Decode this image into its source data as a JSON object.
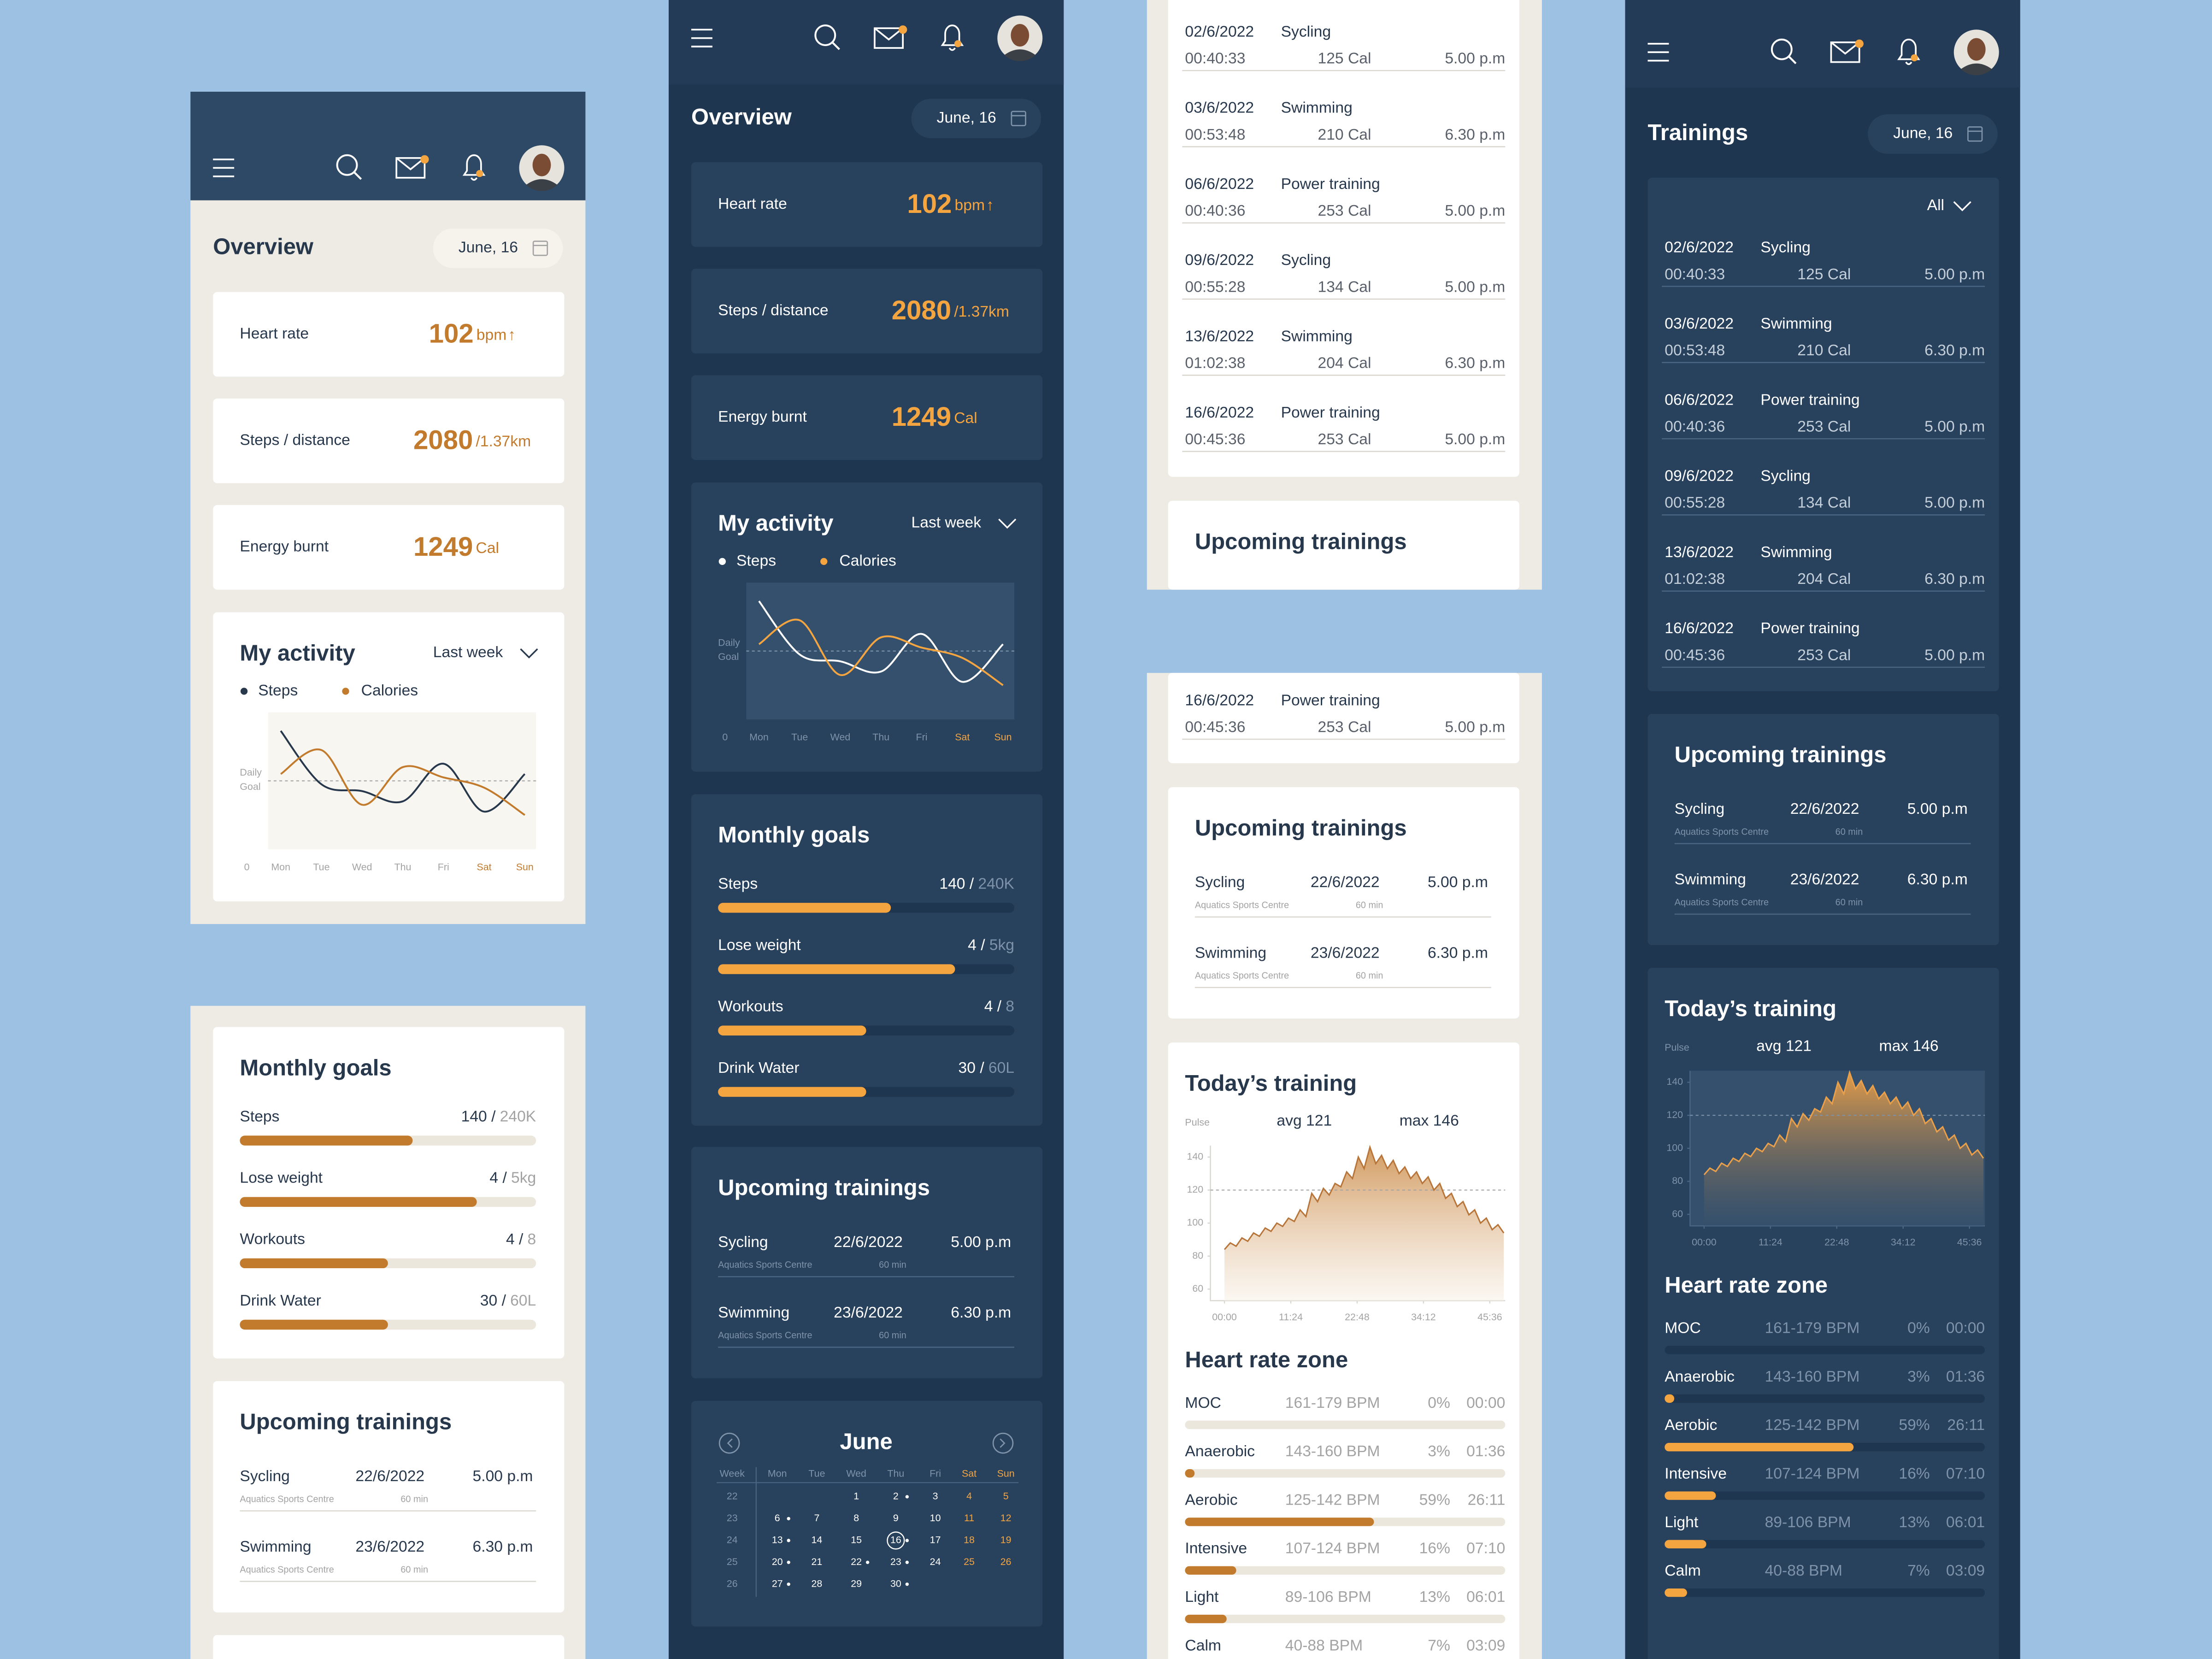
{
  "header": {
    "date": "June, 16"
  },
  "overview": {
    "title": "Overview",
    "metrics": [
      {
        "label": "Heart rate",
        "value": 102,
        "unit": "bpm",
        "trend": "↑"
      },
      {
        "label": "Steps / distance",
        "value": 2080,
        "unit": "/1.37km"
      },
      {
        "label": "Energy burnt",
        "value": 1249,
        "unit": "Cal"
      }
    ]
  },
  "activity": {
    "title": "My activity",
    "period": "Last week",
    "goal_label": [
      "Daily",
      "Goal"
    ],
    "chart": {
      "type": "line",
      "categories": [
        "Mon",
        "Tue",
        "Wed",
        "Thu",
        "Fri",
        "Sat",
        "Sun"
      ],
      "ylim": [
        0,
        2
      ],
      "yticks": [
        0
      ],
      "reference": 1,
      "series": [
        {
          "name": "Steps",
          "values": [
            1.73,
            0.95,
            0.85,
            0.7,
            1.25,
            0.55,
            1.1
          ]
        },
        {
          "name": "Calories",
          "values": [
            1.1,
            1.45,
            0.65,
            1.2,
            1.05,
            0.9,
            0.5
          ]
        }
      ]
    }
  },
  "monthly_goals": {
    "title": "Monthly goals",
    "items": [
      {
        "label": "Steps",
        "current": {
          "value": 140,
          "label": "140 /"
        },
        "goal": {
          "value": 240,
          "label": "240K"
        }
      },
      {
        "label": "Lose weight",
        "current": {
          "value": 4,
          "label": "4 /"
        },
        "goal": {
          "value": 5,
          "label": "5kg"
        }
      },
      {
        "label": "Workouts",
        "current": {
          "value": 4,
          "label": "4 /"
        },
        "goal": 8
      },
      {
        "label": "Drink Water",
        "current": {
          "value": 30,
          "label": "30 /"
        },
        "goal": {
          "value": 60,
          "label": "60L"
        }
      }
    ]
  },
  "upcoming": {
    "title": "Upcoming trainings",
    "items": [
      {
        "name": "Sycling",
        "date": "22/6/2022",
        "time": "5.00 p.m",
        "venue": "Aquatics Sports Centre",
        "duration": "60 min"
      },
      {
        "name": "Swimming",
        "date": "23/6/2022",
        "time": "6.30 p.m",
        "venue": "Aquatics Sports Centre",
        "duration": "60 min"
      }
    ]
  },
  "trainings": {
    "title": "Trainings",
    "filter": "All",
    "items": [
      {
        "date": "02/6/2022",
        "name": "Sycling",
        "duration": "00:40:33",
        "calories": "125 Cal",
        "time": "5.00 p.m"
      },
      {
        "date": "03/6/2022",
        "name": "Swimming",
        "duration": "00:53:48",
        "calories": "210 Cal",
        "time": "6.30 p.m"
      },
      {
        "date": "06/6/2022",
        "name": "Power training",
        "duration": "00:40:36",
        "calories": "253 Cal",
        "time": "5.00 p.m"
      },
      {
        "date": "09/6/2022",
        "name": "Sycling",
        "duration": "00:55:28",
        "calories": "134 Cal",
        "time": "5.00 p.m"
      },
      {
        "date": "13/6/2022",
        "name": "Swimming",
        "duration": "01:02:38",
        "calories": "204 Cal",
        "time": "6.30 p.m"
      },
      {
        "date": "16/6/2022",
        "name": "Power training",
        "duration": "00:45:36",
        "calories": "253 Cal",
        "time": "5.00 p.m"
      }
    ]
  },
  "today": {
    "title": "Today’s training",
    "pulse_label": "Pulse",
    "avg": "avg 121",
    "max": "max 146",
    "chart": {
      "type": "area",
      "x": [
        0,
        60,
        120,
        180,
        240,
        300,
        360,
        420,
        480,
        540,
        600,
        660,
        720,
        780,
        840,
        900,
        960,
        1020,
        1080,
        1140,
        1200,
        1260,
        1320,
        1380,
        1440,
        1500,
        1560,
        1620,
        1680,
        1740,
        1800,
        1860,
        1920,
        1980,
        2040,
        2100,
        2160,
        2220,
        2280,
        2340,
        2400,
        2460,
        2520,
        2580,
        2640,
        2700,
        2760,
        2820,
        2880
      ],
      "values": [
        84,
        88,
        86,
        91,
        89,
        94,
        92,
        97,
        95,
        100,
        98,
        103,
        101,
        108,
        104,
        118,
        113,
        121,
        117,
        124,
        122,
        131,
        127,
        140,
        133,
        146,
        136,
        141,
        133,
        138,
        130,
        134,
        127,
        131,
        124,
        128,
        120,
        124,
        115,
        118,
        110,
        113,
        105,
        108,
        100,
        103,
        96,
        99,
        94
      ],
      "xlim": [
        -145,
        2895
      ],
      "ylim": [
        53,
        147
      ],
      "yticks": [
        60,
        80,
        100,
        120,
        140
      ],
      "xticks": [
        {
          "value": 0,
          "label": "00:00"
        },
        {
          "value": 684,
          "label": "11:24"
        },
        {
          "value": 1368,
          "label": "22:48"
        },
        {
          "value": 2052,
          "label": "34:12"
        },
        {
          "value": 2736,
          "label": "45:36"
        }
      ],
      "reference": 120
    }
  },
  "heart_zone": {
    "title": "Heart rate zone",
    "zones": [
      {
        "name": "MOC",
        "range": "161-179 BPM",
        "share": {
          "value": 0,
          "label": "0%"
        },
        "time": "00:00"
      },
      {
        "name": "Anaerobic",
        "range": "143-160 BPM",
        "share": {
          "value": 3,
          "label": "3%"
        },
        "time": "01:36"
      },
      {
        "name": "Aerobic",
        "range": "125-142 BPM",
        "share": {
          "value": 59,
          "label": "59%"
        },
        "time": "26:11"
      },
      {
        "name": "Intensive",
        "range": "107-124 BPM",
        "share": {
          "value": 16,
          "label": "16%"
        },
        "time": "07:10"
      },
      {
        "name": "Light",
        "range": "89-106 BPM",
        "share": {
          "value": 13,
          "label": "13%"
        },
        "time": "06:01"
      },
      {
        "name": "Calm",
        "range": "40-88 BPM",
        "share": {
          "value": 7,
          "label": "7%"
        },
        "time": "03:09"
      }
    ]
  },
  "calendar": {
    "month": "June",
    "headers": [
      "Week",
      "Mon",
      "Tue",
      "Wed",
      "Thu",
      "Fri",
      "Sat",
      "Sun"
    ],
    "weeks": [
      {
        "number": 22,
        "days": [
          null,
          null,
          1,
          2,
          3,
          4,
          5
        ]
      },
      {
        "number": 23,
        "days": [
          6,
          7,
          8,
          9,
          10,
          11,
          12
        ]
      },
      {
        "number": 24,
        "days": [
          13,
          14,
          15,
          16,
          17,
          18,
          19
        ]
      },
      {
        "number": 25,
        "days": [
          20,
          21,
          22,
          23,
          24,
          25,
          26
        ]
      },
      {
        "number": 26,
        "days": [
          27,
          28,
          29,
          30,
          null,
          null,
          null
        ]
      }
    ],
    "training_days": [
      2,
      6,
      13,
      16,
      20,
      22,
      23,
      27,
      30
    ],
    "selected": 16
  }
}
